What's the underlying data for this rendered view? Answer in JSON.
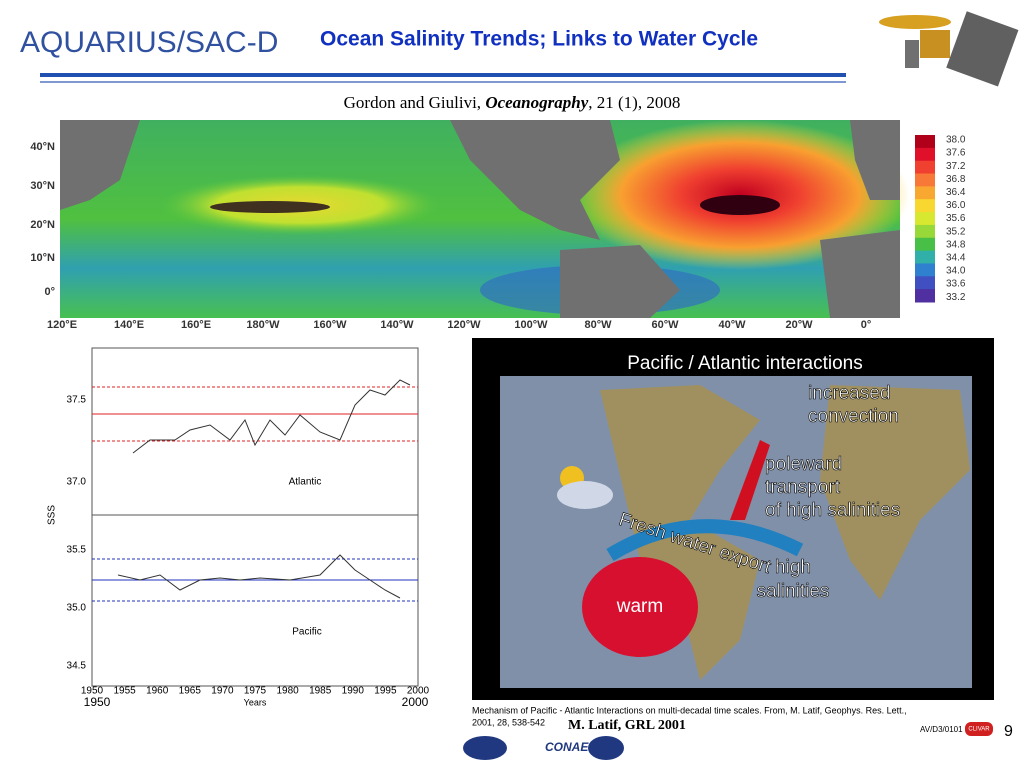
{
  "header": {
    "logo": "AQUARIUS/SAC-D",
    "title": "Ocean Salinity Trends; Links to Water Cycle"
  },
  "citation": {
    "authors": "Gordon and Giulivi, ",
    "journal": "Oceanography",
    "rest": ", 21 (1), 2008"
  },
  "map": {
    "lat_labels": [
      "40°N",
      "30°N",
      "20°N",
      "10°N",
      "0°"
    ],
    "lon_labels": [
      "120°E",
      "140°E",
      "160°E",
      "180°W",
      "160°W",
      "140°W",
      "120°W",
      "100°W",
      "80°W",
      "60°W",
      "40°W",
      "20°W",
      "0°"
    ],
    "colorbar": [
      {
        "label": "38.0",
        "color": "#b0001a"
      },
      {
        "label": "37.6",
        "color": "#e0102a"
      },
      {
        "label": "37.2",
        "color": "#f04030"
      },
      {
        "label": "36.8",
        "color": "#f87838"
      },
      {
        "label": "36.4",
        "color": "#f8a830"
      },
      {
        "label": "36.0",
        "color": "#f8d830"
      },
      {
        "label": "35.6",
        "color": "#d8e830"
      },
      {
        "label": "35.2",
        "color": "#98d838"
      },
      {
        "label": "34.8",
        "color": "#48c048"
      },
      {
        "label": "34.4",
        "color": "#30b0a8"
      },
      {
        "label": "34.0",
        "color": "#3080d0"
      },
      {
        "label": "33.6",
        "color": "#4050c0"
      },
      {
        "label": "33.2",
        "color": "#5030a0"
      }
    ]
  },
  "sss_plot": {
    "y_label": "SSS",
    "x_label": "Years",
    "upper_label": "Atlantic",
    "lower_label": "Pacific",
    "upper_ticks": [
      "37.5",
      "37.0"
    ],
    "lower_ticks": [
      "35.5",
      "35.0",
      "34.5"
    ],
    "x_ticks": [
      "1950",
      "1955",
      "1960",
      "1965",
      "1970",
      "1975",
      "1980",
      "1985",
      "1990",
      "1995",
      "2000"
    ],
    "start": "1950",
    "end": "2000"
  },
  "latif": {
    "title": "Pacific / Atlantic interactions",
    "convection": [
      "increased",
      "convection"
    ],
    "transport": [
      "poleward",
      "transport",
      "of high salinities"
    ],
    "export": "Fresh water export",
    "high": [
      "high",
      "salinities"
    ],
    "warm": "warm",
    "caption": [
      "Mechanism of Pacific - Atlantic Interactions on multi-decadal time scales. From, M. Latif, Geophys. Res. Lett.,",
      "2001, 28, 538-542"
    ],
    "ref": "M. Latif, GRL 2001",
    "code": "AV/D3/0101",
    "badge": "CLIVAR"
  },
  "footer": {
    "conae": "CONAE",
    "page": "9"
  }
}
